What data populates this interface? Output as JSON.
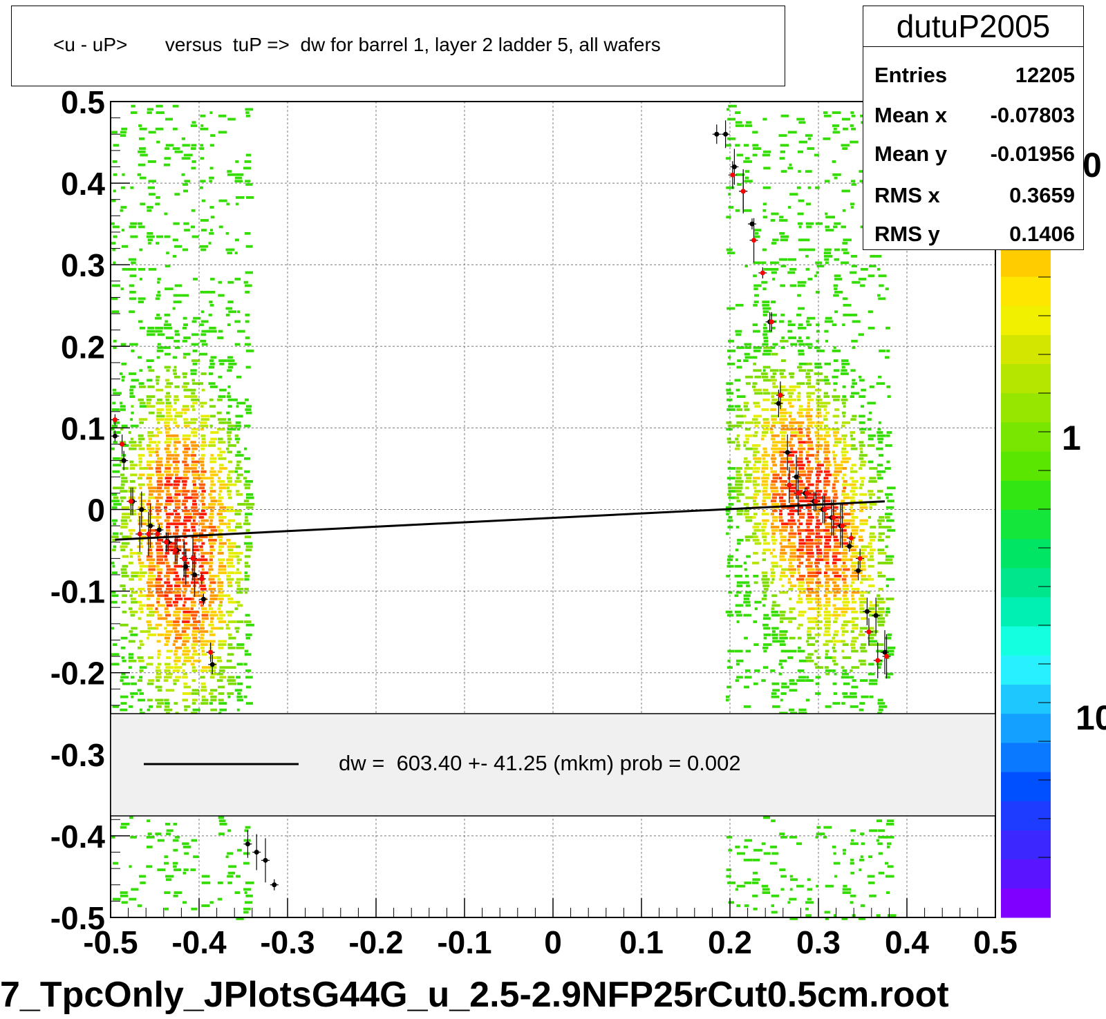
{
  "title": "<u - uP>       versus  tuP =>  dw for barrel 1, layer 2 ladder 5, all wafers",
  "stats": {
    "name": "dutuP2005",
    "rows": [
      {
        "label": "Entries",
        "value": "12205"
      },
      {
        "label": "Mean x",
        "value": "-0.07803"
      },
      {
        "label": "Mean y",
        "value": "-0.01956"
      },
      {
        "label": "RMS x",
        "value": "0.3659"
      },
      {
        "label": "RMS y",
        "value": "0.1406"
      }
    ]
  },
  "fit_legend": "dw =  603.40 +- 41.25 (mkm) prob = 0.002",
  "filename": "7_TpcOnly_JPlotsG44G_u_2.5-2.9NFP25rCut0.5cm.root",
  "colorbar_labels": [
    "0",
    "1",
    "10"
  ],
  "colors": {
    "fit_line": "#000000",
    "profile_black": "#000000",
    "profile_red": "#ff0000",
    "legend_fill": "#f0f0f0"
  },
  "chart_data": {
    "type": "heatmap",
    "title": "<u - uP>       versus  tuP =>  dw for barrel 1, layer 2 ladder 5, all wafers",
    "xlabel": "",
    "ylabel": "",
    "xlim": [
      -0.5,
      0.5
    ],
    "ylim": [
      -0.5,
      0.5
    ],
    "x_ticks": [
      "-0.5",
      "-0.4",
      "-0.3",
      "-0.2",
      "-0.1",
      "0",
      "0.1",
      "0.2",
      "0.3",
      "0.4",
      "0.5"
    ],
    "y_ticks": [
      "0.5",
      "0.4",
      "0.3",
      "0.2",
      "0.1",
      "0",
      "-0.1",
      "-0.2",
      "-0.3",
      "-0.4",
      "-0.5"
    ],
    "grid": true,
    "z_scale": "log",
    "fit_line": {
      "x": [
        -0.495,
        0.375
      ],
      "y": [
        -0.037,
        0.01
      ]
    },
    "clusters": [
      {
        "x_range": [
          -0.5,
          -0.345
        ],
        "y_center": -0.04,
        "y_spread": 0.22,
        "slope": -0.5
      },
      {
        "x_range": [
          0.195,
          0.38
        ],
        "y_center": 0.0,
        "y_spread": 0.18,
        "slope": -2.3
      }
    ],
    "profile_black": {
      "x": [
        -0.495,
        -0.485,
        -0.475,
        -0.465,
        -0.455,
        -0.445,
        -0.435,
        -0.425,
        -0.415,
        -0.405,
        -0.395,
        -0.385,
        -0.345,
        -0.335,
        -0.325,
        -0.315,
        0.185,
        0.195,
        0.205,
        0.215,
        0.225,
        0.245,
        0.255,
        0.265,
        0.275,
        0.285,
        0.295,
        0.305,
        0.315,
        0.325,
        0.335,
        0.345,
        0.355,
        0.365,
        0.375
      ],
      "y": [
        0.09,
        0.06,
        0.01,
        0.0,
        -0.02,
        -0.025,
        -0.04,
        -0.05,
        -0.07,
        -0.08,
        -0.11,
        -0.19,
        -0.41,
        -0.42,
        -0.43,
        -0.46,
        0.46,
        0.46,
        0.42,
        0.39,
        0.35,
        0.23,
        0.13,
        0.07,
        0.04,
        0.02,
        0.01,
        0.0,
        -0.01,
        -0.02,
        -0.045,
        -0.075,
        -0.125,
        -0.13,
        -0.175
      ]
    },
    "profile_red": {
      "x": [
        -0.495,
        -0.487,
        -0.477,
        -0.467,
        -0.457,
        -0.447,
        -0.437,
        -0.427,
        -0.417,
        -0.407,
        -0.397,
        -0.387,
        0.203,
        0.215,
        0.227,
        0.237,
        0.247,
        0.257,
        0.267,
        0.277,
        0.287,
        0.297,
        0.307,
        0.317,
        0.327,
        0.337,
        0.347,
        0.357,
        0.367,
        0.377
      ],
      "y": [
        0.11,
        0.08,
        0.01,
        -0.03,
        -0.03,
        -0.03,
        -0.04,
        -0.05,
        -0.06,
        -0.06,
        -0.085,
        -0.175,
        0.41,
        0.39,
        0.33,
        0.29,
        0.23,
        0.14,
        0.03,
        0.02,
        0.02,
        0.01,
        0.0,
        -0.01,
        -0.02,
        -0.035,
        -0.06,
        -0.15,
        -0.185,
        -0.18
      ]
    }
  }
}
